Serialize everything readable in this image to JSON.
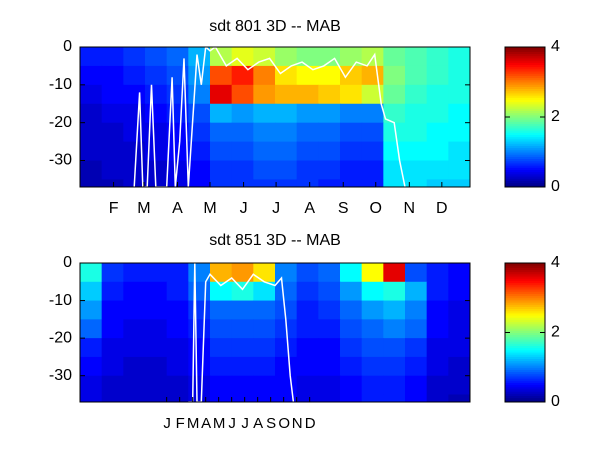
{
  "chart_data": [
    {
      "type": "heatmap",
      "title": "sdt  801 3D   -- MAB",
      "colormap": "jet",
      "xlim": [
        0,
        360
      ],
      "ylim": [
        -37,
        0
      ],
      "clim": [
        0,
        4
      ],
      "yticks": [
        0,
        -10,
        -20,
        -30
      ],
      "cticks": [
        0,
        2,
        4
      ],
      "xticks": [
        {
          "value": 31,
          "label": "F"
        },
        {
          "value": 59,
          "label": "M"
        },
        {
          "value": 90,
          "label": "A"
        },
        {
          "value": 120,
          "label": "M"
        },
        {
          "value": 151,
          "label": "J"
        },
        {
          "value": 181,
          "label": "J"
        },
        {
          "value": 212,
          "label": "A"
        },
        {
          "value": 243,
          "label": "S"
        },
        {
          "value": 273,
          "label": "O"
        },
        {
          "value": 304,
          "label": "N"
        },
        {
          "value": 334,
          "label": "D"
        }
      ],
      "x": [
        10,
        30,
        50,
        70,
        90,
        110,
        130,
        150,
        170,
        190,
        210,
        230,
        250,
        270,
        290,
        310,
        330,
        350
      ],
      "y": [
        -2.5,
        -7.5,
        -12.5,
        -17.5,
        -22.5,
        -27.5,
        -32.5,
        -37.5
      ],
      "z": [
        [
          0.6,
          0.6,
          0.7,
          0.8,
          0.9,
          1.2,
          2.2,
          2.4,
          2.3,
          2.1,
          2.0,
          2.0,
          2.1,
          2.2,
          1.9,
          1.8,
          1.7,
          1.6
        ],
        [
          0.5,
          0.5,
          0.6,
          0.7,
          0.8,
          1.1,
          3.2,
          3.4,
          3.0,
          2.6,
          2.5,
          2.5,
          2.7,
          2.8,
          2.0,
          1.8,
          1.7,
          1.6
        ],
        [
          0.4,
          0.5,
          0.5,
          0.6,
          0.7,
          1.0,
          3.6,
          3.2,
          2.9,
          2.8,
          2.8,
          2.7,
          2.6,
          2.3,
          1.9,
          1.7,
          1.6,
          1.6
        ],
        [
          0.3,
          0.4,
          0.4,
          0.5,
          0.6,
          0.8,
          1.2,
          1.1,
          1.2,
          1.2,
          1.1,
          1.1,
          1.0,
          1.0,
          1.7,
          1.6,
          1.6,
          1.5
        ],
        [
          0.3,
          0.3,
          0.4,
          0.4,
          0.5,
          0.7,
          0.9,
          0.9,
          1.0,
          1.0,
          0.9,
          0.9,
          0.8,
          0.8,
          1.6,
          1.6,
          1.5,
          1.5
        ],
        [
          0.3,
          0.3,
          0.3,
          0.4,
          0.5,
          0.6,
          0.8,
          0.8,
          0.9,
          0.9,
          0.8,
          0.8,
          0.7,
          0.7,
          1.5,
          1.5,
          1.5,
          1.4
        ],
        [
          0.2,
          0.3,
          0.3,
          0.3,
          0.4,
          0.5,
          0.7,
          0.7,
          0.8,
          0.8,
          0.7,
          0.7,
          0.6,
          0.6,
          1.4,
          1.4,
          1.4,
          1.4
        ],
        [
          0.2,
          0.2,
          0.3,
          0.3,
          0.4,
          0.5,
          0.7,
          0.7,
          0.7,
          0.7,
          0.7,
          0.6,
          0.6,
          0.6,
          1.4,
          1.4,
          1.3,
          1.3
        ]
      ],
      "line": {
        "color": "#ffffff",
        "x": [
          50,
          55,
          58,
          62,
          66,
          70,
          80,
          85,
          88,
          92,
          96,
          100,
          105,
          108,
          112,
          116,
          120,
          125,
          135,
          145,
          155,
          165,
          175,
          185,
          195,
          205,
          215,
          225,
          235,
          245,
          255,
          265,
          272,
          278,
          282,
          290,
          295,
          300
        ],
        "y": [
          -37,
          -12,
          -37,
          -37,
          -10,
          -37,
          -37,
          -8,
          -37,
          -25,
          -3,
          -37,
          -15,
          -2,
          -10,
          0,
          -1,
          0,
          -5,
          -3,
          -6,
          -4,
          -3,
          -7,
          -5,
          -4,
          -6,
          -5,
          -3,
          -8,
          -4,
          -5,
          -2,
          -15,
          -19,
          -20,
          -30,
          -37
        ]
      }
    },
    {
      "type": "heatmap",
      "title": "sdt  851 3D   -- MAB",
      "colormap": "jet",
      "xlim": [
        0,
        360
      ],
      "ylim": [
        -37,
        0
      ],
      "clim": [
        0,
        4
      ],
      "yticks": [
        0,
        -10,
        -20,
        -30
      ],
      "cticks": [
        0,
        2,
        4
      ],
      "xticks": [
        {
          "value": 80,
          "label": "J"
        },
        {
          "value": 92,
          "label": "F"
        },
        {
          "value": 104,
          "label": "M"
        },
        {
          "value": 116,
          "label": "A"
        },
        {
          "value": 128,
          "label": "M"
        },
        {
          "value": 140,
          "label": "J"
        },
        {
          "value": 152,
          "label": "J"
        },
        {
          "value": 164,
          "label": "A"
        },
        {
          "value": 176,
          "label": "S"
        },
        {
          "value": 188,
          "label": "O"
        },
        {
          "value": 200,
          "label": "N"
        },
        {
          "value": 212,
          "label": "D"
        }
      ],
      "x": [
        10,
        30,
        50,
        70,
        90,
        110,
        130,
        150,
        170,
        190,
        210,
        230,
        250,
        270,
        290,
        310,
        330,
        350
      ],
      "y": [
        -2.5,
        -7.5,
        -12.5,
        -17.5,
        -22.5,
        -27.5,
        -32.5,
        -37.5
      ],
      "z": [
        [
          1.6,
          0.7,
          0.6,
          0.6,
          0.6,
          1.0,
          2.8,
          2.9,
          2.6,
          1.0,
          0.8,
          0.9,
          1.5,
          2.5,
          3.6,
          0.8,
          0.6,
          0.5
        ],
        [
          1.3,
          0.6,
          0.5,
          0.5,
          0.6,
          0.9,
          1.5,
          1.6,
          1.4,
          0.9,
          0.7,
          0.8,
          1.1,
          1.5,
          1.6,
          1.2,
          0.6,
          0.5
        ],
        [
          1.1,
          0.5,
          0.5,
          0.5,
          0.5,
          0.7,
          0.9,
          0.9,
          0.9,
          0.8,
          0.6,
          0.7,
          0.9,
          1.1,
          1.2,
          1.0,
          0.5,
          0.4
        ],
        [
          0.9,
          0.5,
          0.4,
          0.4,
          0.5,
          0.6,
          0.8,
          0.8,
          0.8,
          0.7,
          0.6,
          0.6,
          0.8,
          0.9,
          1.0,
          0.9,
          0.5,
          0.4
        ],
        [
          0.6,
          0.4,
          0.4,
          0.4,
          0.4,
          0.5,
          0.7,
          0.7,
          0.7,
          0.6,
          0.5,
          0.5,
          0.7,
          0.8,
          0.8,
          0.7,
          0.4,
          0.4
        ],
        [
          0.5,
          0.4,
          0.3,
          0.3,
          0.4,
          0.5,
          0.6,
          0.6,
          0.6,
          0.5,
          0.5,
          0.5,
          0.6,
          0.7,
          0.7,
          0.6,
          0.4,
          0.3
        ],
        [
          0.4,
          0.3,
          0.3,
          0.3,
          0.3,
          0.4,
          0.5,
          0.5,
          0.5,
          0.5,
          0.4,
          0.4,
          0.5,
          0.6,
          0.6,
          0.5,
          0.3,
          0.3
        ],
        [
          0.4,
          0.3,
          0.3,
          0.3,
          0.3,
          0.4,
          0.5,
          0.5,
          0.5,
          0.5,
          0.4,
          0.4,
          0.5,
          0.6,
          0.6,
          0.5,
          0.3,
          0.2
        ]
      ],
      "line": {
        "color": "#ffffff",
        "x": [
          100,
          104,
          106,
          108,
          112,
          116,
          120,
          130,
          140,
          150,
          160,
          170,
          180,
          186,
          190,
          194,
          197
        ],
        "y": [
          -37,
          -37,
          0,
          -37,
          -37,
          -5,
          -3,
          -6,
          -4,
          -7,
          -3,
          -5,
          -6,
          -4,
          -15,
          -30,
          -37
        ]
      }
    }
  ]
}
